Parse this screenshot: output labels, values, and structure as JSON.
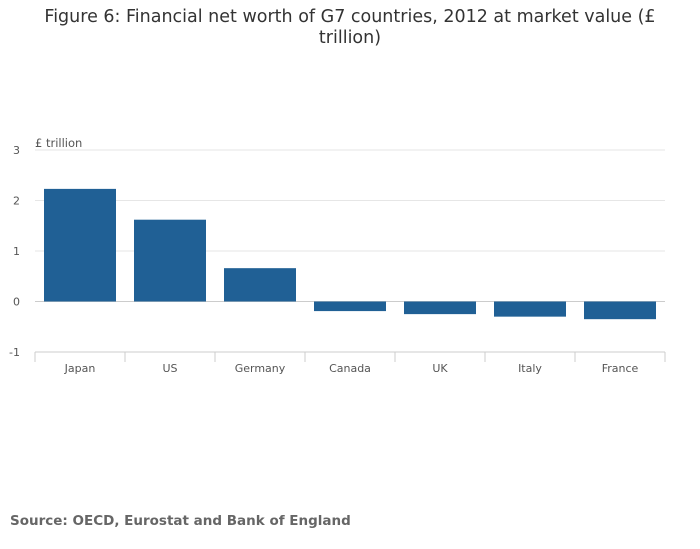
{
  "source": "Source: OECD, Eurostat and Bank of England",
  "chart_data": {
    "type": "bar",
    "title": "Figure 6: Financial net worth of G7 countries, 2012 at market value (£ trillion)",
    "ylabel": "£ trillion",
    "xlabel": "",
    "categories": [
      "Japan",
      "US",
      "Germany",
      "Canada",
      "UK",
      "Italy",
      "France"
    ],
    "values": [
      2.23,
      1.62,
      0.66,
      -0.19,
      -0.25,
      -0.3,
      -0.35
    ],
    "ylim": [
      -1,
      3
    ],
    "yticks": [
      -1,
      0,
      1,
      2,
      3
    ],
    "bar_color": "#206095",
    "grid": true
  }
}
